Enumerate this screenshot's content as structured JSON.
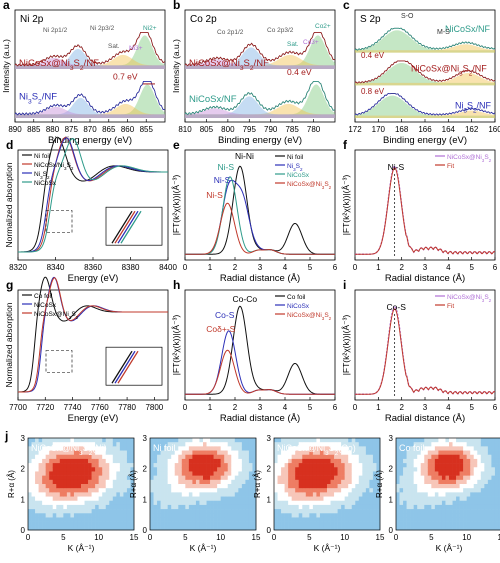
{
  "colors": {
    "purple": "#b070d6",
    "red": "#c0392b",
    "darkred": "#a31c1c",
    "blue": "#2b2fb7",
    "navy": "#1f2a8a",
    "teal": "#2e9b8a",
    "green": "#7fc97f",
    "black": "#111111",
    "gray": "#7a7a7a"
  },
  "chart_data": [
    {
      "id": "a",
      "panel_label": "a",
      "type": "line",
      "subtype": "xps",
      "title": "Ni 2p",
      "xlabel": "Binding energy (eV)",
      "ylabel": "Intensity (a.u.)",
      "xlim": [
        890,
        850
      ],
      "xticks": [
        890,
        885,
        880,
        875,
        870,
        865,
        860,
        855
      ],
      "series": [
        {
          "name": "NiCoSx@Ni3S2/NF",
          "offset": 1,
          "envelope": [
            {
              "center": 855.4,
              "height": 1.0,
              "width": 2.0
            },
            {
              "center": 861.2,
              "height": 0.35,
              "width": 2.5
            },
            {
              "center": 873.2,
              "height": 0.55,
              "width": 2.0
            },
            {
              "center": 879.5,
              "height": 0.25,
              "width": 2.5
            }
          ]
        },
        {
          "name": "Ni3S2/NF",
          "offset": 0,
          "envelope": [
            {
              "center": 854.7,
              "height": 1.0,
              "width": 2.0
            },
            {
              "center": 860.5,
              "height": 0.35,
              "width": 2.5
            },
            {
              "center": 872.5,
              "height": 0.55,
              "width": 2.0
            },
            {
              "center": 879.0,
              "height": 0.25,
              "width": 2.5
            }
          ]
        }
      ],
      "annotations": [
        "Ni 2p1/2",
        "Ni 2p3/2",
        "Sat.",
        "Ni3+",
        "Ni2+"
      ],
      "labels": {
        "top": "NiCoSx@Ni3S2/NF",
        "bottom": "Ni3S2/NF",
        "shift": "0.7 eV"
      }
    },
    {
      "id": "b",
      "panel_label": "b",
      "type": "line",
      "subtype": "xps",
      "title": "Co 2p",
      "xlabel": "Binding energy (eV)",
      "ylabel": "Intensity (a.u.)",
      "xlim": [
        810,
        775
      ],
      "xticks": [
        810,
        805,
        800,
        795,
        790,
        785,
        780
      ],
      "series": [
        {
          "name": "NiCoSx@Ni3S2/NF",
          "offset": 1,
          "envelope": [
            {
              "center": 779.0,
              "height": 1.0,
              "width": 1.8
            },
            {
              "center": 785.5,
              "height": 0.35,
              "width": 2.5
            },
            {
              "center": 794.6,
              "height": 0.6,
              "width": 2.0
            },
            {
              "center": 802.5,
              "height": 0.2,
              "width": 2.5
            }
          ]
        },
        {
          "name": "NiCoSx/NF",
          "offset": 0,
          "envelope": [
            {
              "center": 779.4,
              "height": 1.0,
              "width": 1.8
            },
            {
              "center": 785.9,
              "height": 0.35,
              "width": 2.5
            },
            {
              "center": 795.0,
              "height": 0.6,
              "width": 2.0
            },
            {
              "center": 803.0,
              "height": 0.2,
              "width": 2.5
            }
          ]
        }
      ],
      "annotations": [
        "Co 2p1/2",
        "Co 2p3/2",
        "Sat.",
        "Co3+",
        "Co2+"
      ],
      "labels": {
        "top": "NiCoSx@Ni3S2/NF",
        "bottom": "NiCoSx/NF",
        "shift": "0.4 eV"
      }
    },
    {
      "id": "c",
      "panel_label": "c",
      "type": "line",
      "subtype": "xps",
      "title": "S 2p",
      "xlabel": "Binding energy (eV)",
      "ylabel": "",
      "xlim": [
        172,
        160
      ],
      "xticks": [
        172,
        170,
        168,
        166,
        164,
        162,
        160
      ],
      "series": [
        {
          "name": "NiCoSx/NF",
          "offset": 2,
          "envelope": [
            {
              "center": 168.4,
              "height": 1.0,
              "width": 1.2
            },
            {
              "center": 162.5,
              "height": 0.3,
              "width": 1.0
            }
          ]
        },
        {
          "name": "NiCoSx@Ni3S2/NF",
          "offset": 1,
          "envelope": [
            {
              "center": 168.0,
              "height": 1.0,
              "width": 1.2
            },
            {
              "center": 162.3,
              "height": 0.5,
              "width": 1.0
            }
          ]
        },
        {
          "name": "Ni3S2/NF",
          "offset": 0,
          "envelope": [
            {
              "center": 168.8,
              "height": 1.0,
              "width": 1.2
            },
            {
              "center": 162.0,
              "height": 0.25,
              "width": 1.0
            }
          ]
        }
      ],
      "annotations": [
        "S-O",
        "M-S"
      ],
      "labels": {
        "top": "NiCoSx/NF",
        "mid": "NiCoSx@Ni3S2/NF",
        "bottom": "Ni3S2/NF",
        "shift1": "0.4 eV",
        "shift2": "0.8 eV"
      }
    },
    {
      "id": "d",
      "panel_label": "d",
      "type": "line",
      "subtype": "xanes",
      "title": "",
      "xlabel": "Energy (eV)",
      "ylabel": "Normalized absorption",
      "xlim": [
        8320,
        8400
      ],
      "xticks": [
        8320,
        8340,
        8360,
        8380,
        8400
      ],
      "series": [
        {
          "name": "Ni foil",
          "edge": 8333.0
        },
        {
          "name": "NiCoSx/Ni3S2",
          "edge": 8336.0
        },
        {
          "name": "Ni3S2",
          "edge": 8335.0
        },
        {
          "name": "NiCoSx",
          "edge": 8337.0
        }
      ]
    },
    {
      "id": "e",
      "panel_label": "e",
      "type": "line",
      "subtype": "ft-exafs",
      "title": "",
      "xlabel": "Radial distance (Å)",
      "ylabel": "|FT(k²χ(k))|(Å⁻³)",
      "xlim": [
        0,
        6
      ],
      "xticks": [
        0,
        1,
        2,
        3,
        4,
        5,
        6
      ],
      "series": [
        {
          "name": "Ni foil",
          "peaks": [
            {
              "r": 2.2,
              "h": 1.0
            },
            {
              "r": 4.4,
              "h": 0.35
            }
          ]
        },
        {
          "name": "Ni3S2",
          "peaks": [
            {
              "r": 1.75,
              "h": 0.72
            },
            {
              "r": 2.3,
              "h": 0.6
            }
          ]
        },
        {
          "name": "NiCoSx",
          "peaks": [
            {
              "r": 1.8,
              "h": 0.88
            }
          ]
        },
        {
          "name": "NiCoSx@Ni3S2",
          "peaks": [
            {
              "r": 1.7,
              "h": 0.58
            }
          ]
        }
      ],
      "annotations": [
        "Ni-Ni",
        "Ni-S",
        "Ni-S",
        "Ni-S"
      ]
    },
    {
      "id": "f",
      "panel_label": "f",
      "type": "line",
      "subtype": "ft-exafs-fit",
      "title": "",
      "xlabel": "Radial distance (Å)",
      "ylabel": "|FT(k²χ(k))|(Å⁻³)",
      "xlim": [
        0,
        6
      ],
      "xticks": [
        0,
        1,
        2,
        3,
        4,
        5,
        6
      ],
      "series": [
        {
          "name": "NiCoSx@Ni3S2",
          "peaks": [
            {
              "r": 1.7,
              "h": 1.0
            }
          ]
        },
        {
          "name": "Fit",
          "peaks": [
            {
              "r": 1.7,
              "h": 0.98
            }
          ]
        }
      ],
      "annotations": [
        "Ni-S"
      ]
    },
    {
      "id": "g",
      "panel_label": "g",
      "type": "line",
      "subtype": "xanes",
      "title": "",
      "xlabel": "Energy (eV)",
      "ylabel": "Normalized absorption",
      "xlim": [
        7700,
        7810
      ],
      "xticks": [
        7700,
        7720,
        7740,
        7760,
        7780,
        7800
      ],
      "series": [
        {
          "name": "Co foil",
          "edge": 7712.0
        },
        {
          "name": "NiCoSx",
          "edge": 7717.0
        },
        {
          "name": "NiCoSx@Ni3S2",
          "edge": 7716.0
        }
      ]
    },
    {
      "id": "h",
      "panel_label": "h",
      "type": "line",
      "subtype": "ft-exafs",
      "title": "",
      "xlabel": "Radial distance (Å)",
      "ylabel": "|FT(k²χ(k))|(Å⁻³)",
      "xlim": [
        0,
        6
      ],
      "xticks": [
        0,
        1,
        2,
        3,
        4,
        5,
        6
      ],
      "series": [
        {
          "name": "Co foil",
          "peaks": [
            {
              "r": 2.2,
              "h": 1.0
            },
            {
              "r": 4.4,
              "h": 0.35
            }
          ]
        },
        {
          "name": "NiCoSx",
          "peaks": [
            {
              "r": 1.75,
              "h": 0.72
            }
          ]
        },
        {
          "name": "NiCoSx@Ni3S2",
          "peaks": [
            {
              "r": 1.7,
              "h": 0.5
            }
          ]
        }
      ],
      "annotations": [
        "Co-Co",
        "Co-S",
        "Coδ+-S"
      ]
    },
    {
      "id": "i",
      "panel_label": "i",
      "type": "line",
      "subtype": "ft-exafs-fit",
      "title": "",
      "xlabel": "Radial distance (Å)",
      "ylabel": "|FT(k²χ(k))|(Å⁻³)",
      "xlim": [
        0,
        6
      ],
      "xticks": [
        0,
        1,
        2,
        3,
        4,
        5,
        6
      ],
      "series": [
        {
          "name": "NiCoSx@Ni3S2",
          "peaks": [
            {
              "r": 1.7,
              "h": 1.0
            }
          ]
        },
        {
          "name": "Fit",
          "peaks": [
            {
              "r": 1.7,
              "h": 0.97
            }
          ]
        }
      ],
      "annotations": [
        "Co-S"
      ]
    },
    {
      "id": "j",
      "panel_label": "j",
      "type": "heatmap",
      "subtype": "wavelet-transform",
      "xlabel": "K (Å⁻¹)",
      "ylabel": "R+α (Å)",
      "xlim": [
        0,
        15
      ],
      "ylim": [
        0,
        3
      ],
      "xticks": [
        0,
        5,
        10,
        15
      ],
      "yticks": [
        0,
        1,
        2,
        3
      ],
      "maps": [
        {
          "title": "NiCoSx@Ni3S2(Ni)",
          "center": [
            6.5,
            1.9
          ],
          "width": [
            4.0,
            0.65
          ]
        },
        {
          "title": "Ni foil",
          "center": [
            7.8,
            2.1
          ],
          "width": [
            3.2,
            0.55
          ]
        },
        {
          "title": "NiCoSx@Ni3S2(Co)",
          "center": [
            6.2,
            1.9
          ],
          "width": [
            4.0,
            0.65
          ]
        },
        {
          "title": "Co foil",
          "center": [
            7.6,
            2.1
          ],
          "width": [
            3.0,
            0.55
          ]
        }
      ]
    }
  ]
}
